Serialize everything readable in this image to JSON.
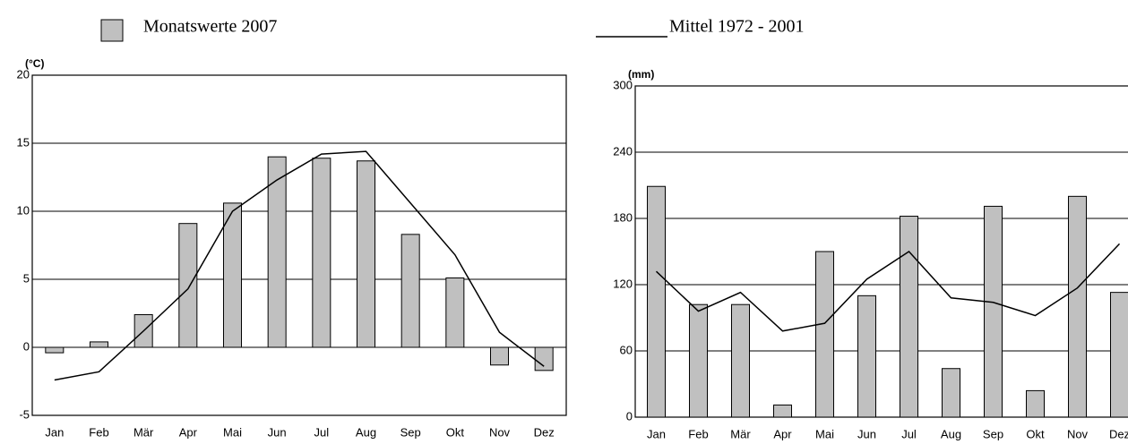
{
  "chart_data": [
    {
      "type": "bar_line",
      "ylabel": "(°C)",
      "categories": [
        "Jan",
        "Feb",
        "Mär",
        "Apr",
        "Mai",
        "Jun",
        "Jul",
        "Aug",
        "Sep",
        "Okt",
        "Nov",
        "Dez"
      ],
      "ylim": [
        -5,
        20
      ],
      "yticks": [
        -5,
        0,
        5,
        10,
        15,
        20
      ],
      "grid": true,
      "series": [
        {
          "name": "Monatswerte 2007",
          "kind": "bar",
          "color": "#c0c0c0",
          "values": [
            -0.4,
            0.4,
            2.4,
            9.1,
            10.6,
            14.0,
            13.9,
            13.7,
            8.3,
            5.1,
            -1.3,
            -1.7
          ]
        },
        {
          "name": "Mittel 1972 - 2001",
          "kind": "line",
          "color": "#000000",
          "values": [
            -2.4,
            -1.8,
            1.2,
            4.3,
            10.0,
            12.3,
            14.2,
            14.4,
            10.6,
            6.8,
            1.1,
            -1.4
          ]
        }
      ]
    },
    {
      "type": "bar_line",
      "ylabel": "(mm)",
      "categories": [
        "Jan",
        "Feb",
        "Mär",
        "Apr",
        "Mai",
        "Jun",
        "Jul",
        "Aug",
        "Sep",
        "Okt",
        "Nov",
        "Dez"
      ],
      "ylim": [
        0,
        300
      ],
      "yticks": [
        0,
        60,
        120,
        180,
        240,
        300
      ],
      "grid": true,
      "series": [
        {
          "kind": "bar",
          "color": "#c0c0c0",
          "values": [
            209,
            102,
            102,
            11,
            150,
            110,
            182,
            44,
            191,
            24,
            200,
            113
          ]
        },
        {
          "kind": "line",
          "color": "#000000",
          "values": [
            132,
            96,
            113,
            78,
            85,
            125,
            150,
            108,
            104,
            92,
            117,
            157
          ]
        }
      ]
    }
  ]
}
